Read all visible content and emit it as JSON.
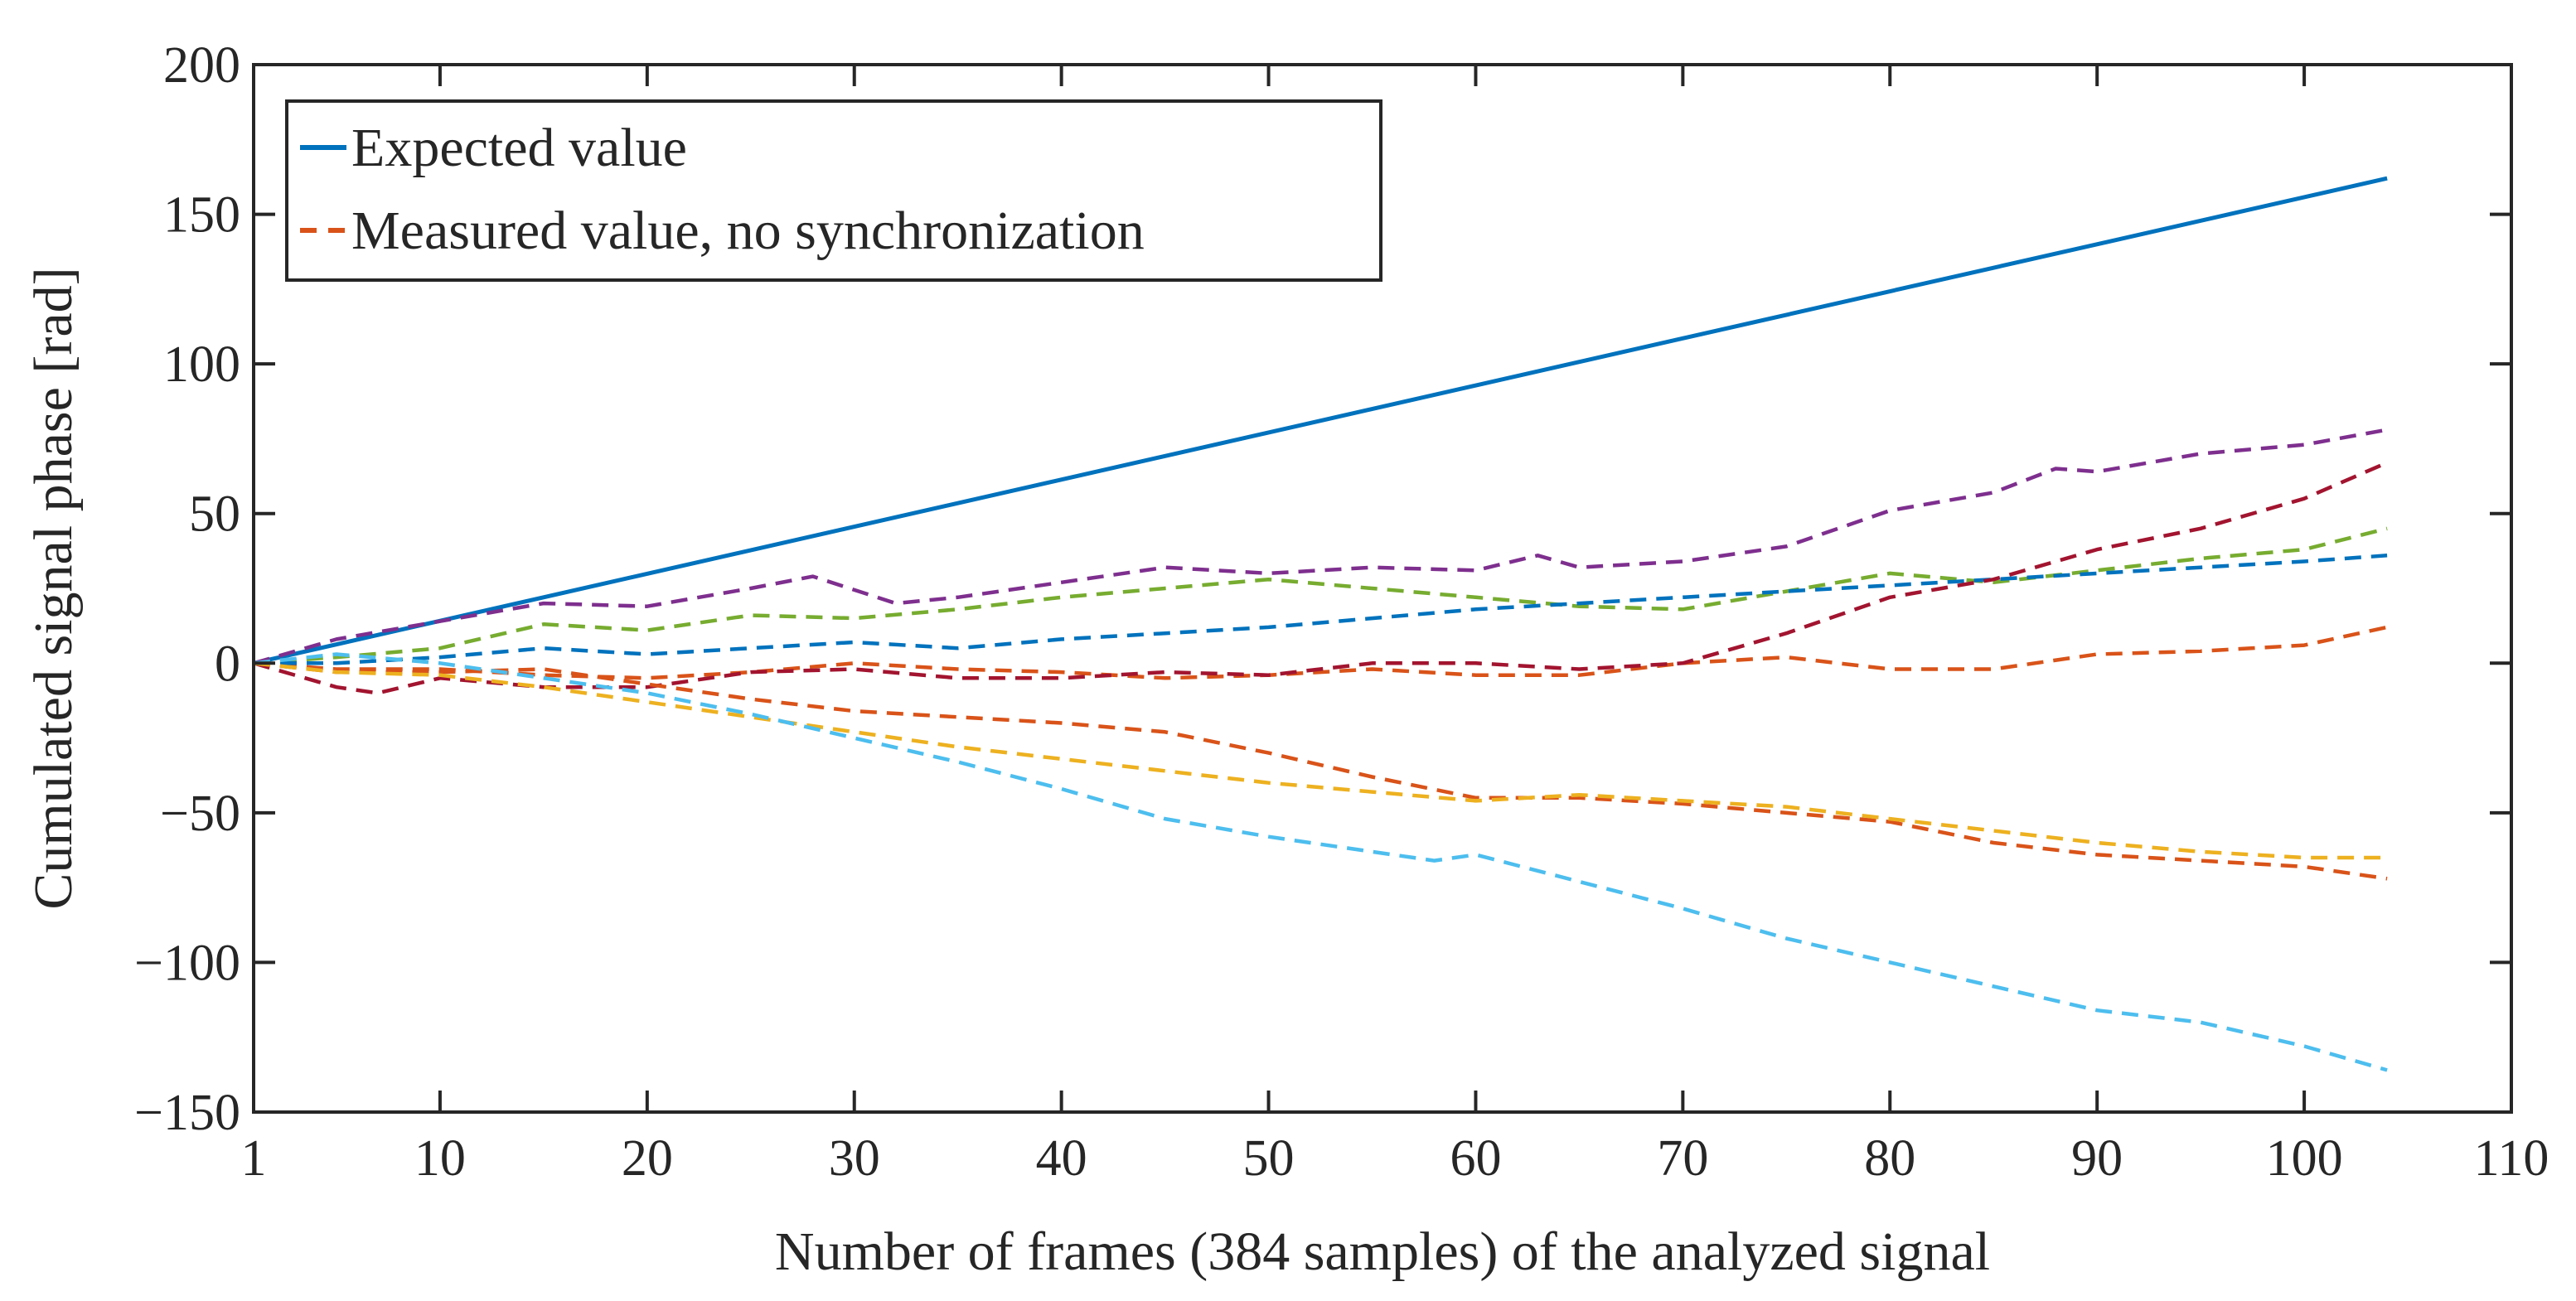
{
  "chart_data": {
    "type": "line",
    "title": "",
    "xlabel": "Number of frames (384 samples) of the analyzed signal",
    "ylabel": "Cumulated signal phase [rad]",
    "xlim": [
      1,
      110
    ],
    "ylim": [
      -150,
      200
    ],
    "xticks": [
      1,
      10,
      20,
      30,
      40,
      50,
      60,
      70,
      80,
      90,
      100,
      110
    ],
    "xtick_labels": [
      "1",
      "10",
      "20",
      "30",
      "40",
      "50",
      "60",
      "70",
      "80",
      "90",
      "100",
      "110"
    ],
    "yticks": [
      -150,
      -100,
      -50,
      0,
      50,
      100,
      150,
      200
    ],
    "ytick_labels": [
      "−150",
      "−100",
      "−50",
      "0",
      "50",
      "100",
      "150",
      "200"
    ],
    "grid": false,
    "legend": {
      "position": "top-left",
      "entries": [
        "Expected value",
        "Measured value, no synchronization"
      ]
    },
    "colors": {
      "expected": "#0072BD",
      "measured": "#D95319"
    },
    "series": [
      {
        "name": "Expected value",
        "style": "solid",
        "color": "#0072BD",
        "x": [
          1,
          104
        ],
        "y": [
          0,
          162
        ]
      },
      {
        "name": "Measured value, no synchronization",
        "style": "dashed",
        "color": "#D95319",
        "x": [
          1,
          5,
          10,
          15,
          20,
          25,
          30,
          35,
          40,
          45,
          50,
          55,
          60,
          65,
          70,
          75,
          80,
          85,
          90,
          95,
          100,
          104
        ],
        "y": [
          0,
          -2,
          -2,
          -4,
          -5,
          -3,
          0,
          -2,
          -3,
          -5,
          -4,
          -2,
          -4,
          -4,
          0,
          2,
          -2,
          -2,
          3,
          4,
          6,
          12
        ]
      },
      {
        "name": "purple run",
        "style": "dashed",
        "color": "#7E2F8E",
        "x": [
          1,
          5,
          10,
          15,
          20,
          25,
          28,
          32,
          35,
          40,
          45,
          50,
          55,
          60,
          63,
          65,
          70,
          75,
          80,
          85,
          88,
          90,
          95,
          100,
          104
        ],
        "y": [
          0,
          8,
          14,
          20,
          19,
          25,
          29,
          20,
          22,
          27,
          32,
          30,
          32,
          31,
          36,
          32,
          34,
          39,
          51,
          57,
          65,
          64,
          70,
          73,
          78
        ]
      },
      {
        "name": "green run",
        "style": "dashed",
        "color": "#77AC30",
        "x": [
          1,
          5,
          10,
          15,
          20,
          25,
          30,
          35,
          40,
          45,
          50,
          55,
          60,
          65,
          70,
          75,
          80,
          85,
          90,
          95,
          100,
          104
        ],
        "y": [
          0,
          2,
          5,
          13,
          11,
          16,
          15,
          18,
          22,
          25,
          28,
          25,
          22,
          19,
          18,
          24,
          30,
          27,
          31,
          35,
          38,
          45
        ]
      },
      {
        "name": "blue run",
        "style": "dashed",
        "color": "#0072BD",
        "x": [
          1,
          5,
          10,
          15,
          20,
          25,
          30,
          35,
          40,
          45,
          50,
          55,
          60,
          65,
          70,
          75,
          80,
          85,
          90,
          95,
          100,
          104
        ],
        "y": [
          0,
          0,
          2,
          5,
          3,
          5,
          7,
          5,
          8,
          10,
          12,
          15,
          18,
          20,
          22,
          24,
          26,
          28,
          30,
          32,
          34,
          36
        ]
      },
      {
        "name": "dark red run",
        "style": "dashed",
        "color": "#A2142F",
        "x": [
          1,
          5,
          7,
          10,
          15,
          20,
          25,
          30,
          35,
          40,
          45,
          50,
          55,
          60,
          65,
          70,
          75,
          80,
          85,
          90,
          95,
          100,
          104
        ],
        "y": [
          0,
          -8,
          -10,
          -5,
          -8,
          -8,
          -3,
          -2,
          -5,
          -5,
          -3,
          -4,
          0,
          0,
          -2,
          0,
          10,
          22,
          28,
          38,
          45,
          55,
          67
        ]
      },
      {
        "name": "orange run",
        "style": "dashed",
        "color": "#D95319",
        "x": [
          1,
          5,
          10,
          15,
          20,
          25,
          30,
          35,
          40,
          45,
          50,
          55,
          60,
          65,
          70,
          75,
          80,
          85,
          90,
          95,
          100,
          104
        ],
        "y": [
          0,
          -3,
          -3,
          -2,
          -7,
          -12,
          -16,
          -18,
          -20,
          -23,
          -30,
          -38,
          -45,
          -45,
          -47,
          -50,
          -53,
          -60,
          -64,
          -66,
          -68,
          -72
        ]
      },
      {
        "name": "yellow run",
        "style": "dashed",
        "color": "#EDB120",
        "x": [
          1,
          5,
          10,
          15,
          20,
          25,
          30,
          35,
          40,
          45,
          50,
          55,
          60,
          65,
          70,
          75,
          80,
          85,
          90,
          95,
          100,
          104
        ],
        "y": [
          0,
          -3,
          -4,
          -8,
          -13,
          -18,
          -23,
          -28,
          -32,
          -36,
          -40,
          -43,
          -46,
          -44,
          -46,
          -48,
          -52,
          -56,
          -60,
          -63,
          -65,
          -65
        ]
      },
      {
        "name": "light blue run",
        "style": "dashed",
        "color": "#4DBEEE",
        "x": [
          1,
          5,
          10,
          15,
          20,
          25,
          30,
          35,
          40,
          45,
          50,
          55,
          58,
          60,
          65,
          70,
          75,
          80,
          85,
          90,
          95,
          100,
          104
        ],
        "y": [
          0,
          3,
          0,
          -5,
          -10,
          -17,
          -25,
          -33,
          -42,
          -52,
          -58,
          -63,
          -66,
          -64,
          -73,
          -82,
          -92,
          -100,
          -108,
          -116,
          -120,
          -128,
          -136
        ]
      }
    ]
  }
}
